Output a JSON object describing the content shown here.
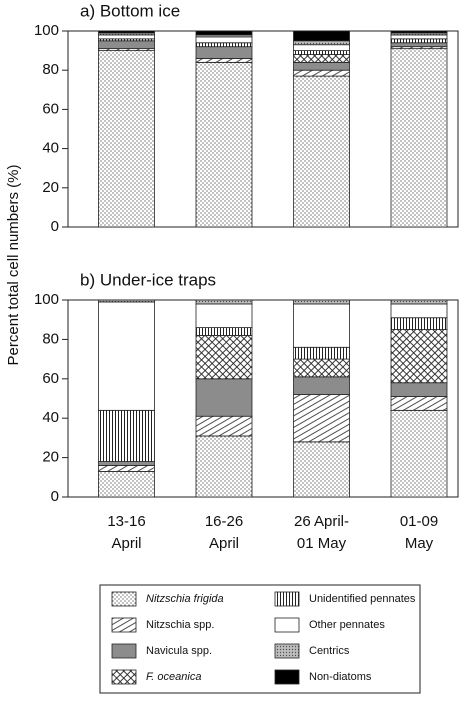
{
  "y_label": "Percent total cell numbers (%)",
  "chart_data": [
    {
      "type": "stacked_bar",
      "title": "a) Bottom ice",
      "ylim": [
        0,
        100
      ],
      "yticks": [
        0,
        20,
        40,
        60,
        80,
        100
      ],
      "series": [
        {
          "name": "Nitzschia frigida",
          "pattern": "dots",
          "values": [
            90,
            84,
            77,
            91
          ]
        },
        {
          "name": "Nitzschia spp.",
          "pattern": "hatch",
          "values": [
            1,
            2,
            3,
            1
          ]
        },
        {
          "name": "Navicula spp.",
          "pattern": "gray",
          "values": [
            4,
            6,
            4,
            2
          ]
        },
        {
          "name": "F. oceanica",
          "pattern": "cross",
          "values": [
            0,
            0,
            4,
            0
          ]
        },
        {
          "name": "Unidentified pennates",
          "pattern": "vlines",
          "values": [
            1,
            2,
            2,
            2
          ]
        },
        {
          "name": "Other pennates",
          "pattern": "white",
          "values": [
            2,
            3,
            3,
            2
          ]
        },
        {
          "name": "Centrics",
          "pattern": "graydots",
          "values": [
            1,
            1,
            2,
            1
          ]
        },
        {
          "name": "Non-diatoms",
          "pattern": "black",
          "values": [
            1,
            2,
            5,
            1
          ]
        }
      ]
    },
    {
      "type": "stacked_bar",
      "title": "b) Under-ice traps",
      "categories": [
        [
          "13-16",
          "April"
        ],
        [
          "16-26",
          "April"
        ],
        [
          "26 April-",
          "01 May"
        ],
        [
          "01-09",
          "May"
        ]
      ],
      "ylim": [
        0,
        100
      ],
      "yticks": [
        0,
        20,
        40,
        60,
        80,
        100
      ],
      "series": [
        {
          "name": "Nitzschia frigida",
          "pattern": "dots",
          "values": [
            13,
            31,
            28,
            44
          ]
        },
        {
          "name": "Nitzschia spp.",
          "pattern": "hatch",
          "values": [
            3,
            10,
            24,
            7
          ]
        },
        {
          "name": "Navicula spp.",
          "pattern": "gray",
          "values": [
            2,
            19,
            9,
            7
          ]
        },
        {
          "name": "F. oceanica",
          "pattern": "cross",
          "values": [
            0,
            22,
            9,
            27
          ]
        },
        {
          "name": "Unidentified pennates",
          "pattern": "vlines",
          "values": [
            26,
            4,
            6,
            6
          ]
        },
        {
          "name": "Other pennates",
          "pattern": "white",
          "values": [
            55,
            12,
            22,
            7
          ]
        },
        {
          "name": "Centrics",
          "pattern": "graydots",
          "values": [
            1,
            2,
            2,
            2
          ]
        },
        {
          "name": "Non-diatoms",
          "pattern": "black",
          "values": [
            0,
            0,
            0,
            0
          ]
        }
      ]
    }
  ]
}
